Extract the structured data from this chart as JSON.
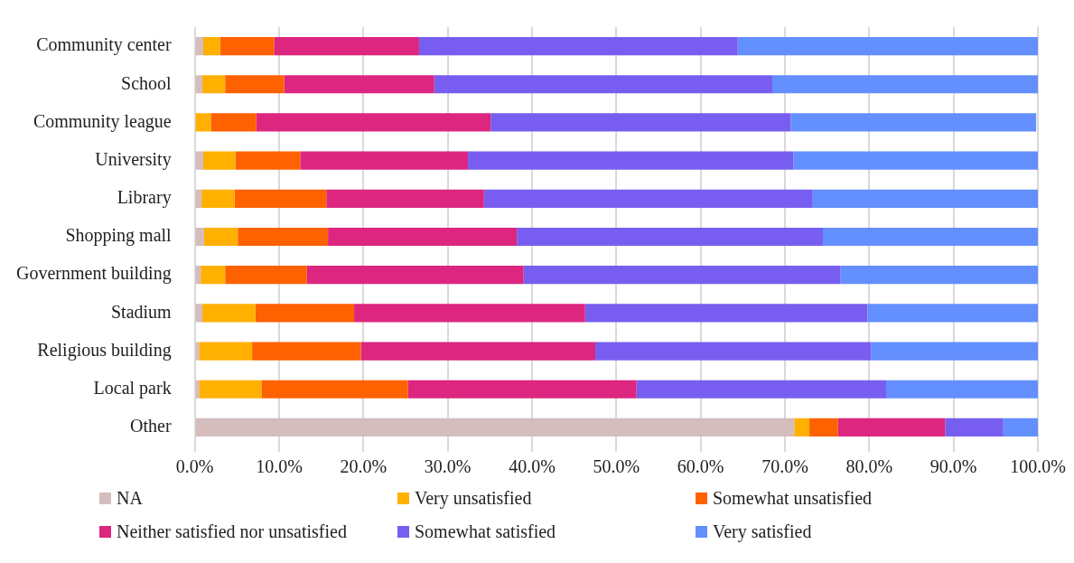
{
  "chart_data": {
    "type": "bar",
    "orientation": "horizontal",
    "stacked": true,
    "categories": [
      "Community center",
      "School",
      "Community league",
      "University",
      "Library",
      "Shopping mall",
      "Government building",
      "Stadium",
      "Religious building",
      "Local park",
      "Other"
    ],
    "series": [
      {
        "name": "NA",
        "color": "#d5bdbd",
        "values": [
          1.0,
          0.9,
          null,
          1.0,
          0.8,
          1.1,
          0.7,
          0.9,
          0.5,
          0.5,
          71.1
        ]
      },
      {
        "name": "Very unsatisfied",
        "color": "#ffb000",
        "values": [
          2.0,
          2.7,
          1.9,
          3.8,
          3.9,
          4.0,
          2.9,
          6.3,
          6.3,
          7.4,
          1.8
        ]
      },
      {
        "name": "Somewhat unsatisfied",
        "color": "#fe6100",
        "values": [
          6.4,
          7.0,
          5.4,
          7.7,
          10.9,
          10.7,
          9.7,
          11.7,
          12.9,
          17.4,
          3.4
        ]
      },
      {
        "name": "Neither satisfied nor unsatisfied",
        "color": "#dc267f",
        "values": [
          17.2,
          17.8,
          27.8,
          19.9,
          18.7,
          22.4,
          25.7,
          27.4,
          27.8,
          27.1,
          12.7
        ]
      },
      {
        "name": "Somewhat satisfied",
        "color": "#785ef0",
        "values": [
          37.8,
          40.1,
          35.6,
          38.6,
          39.0,
          36.3,
          37.6,
          33.5,
          32.7,
          29.6,
          6.9
        ]
      },
      {
        "name": "Very satisfied",
        "color": "#648fff",
        "values": [
          35.6,
          31.5,
          29.1,
          29.0,
          26.7,
          25.5,
          23.4,
          20.2,
          19.8,
          18.0,
          4.1
        ]
      }
    ],
    "xlim": [
      0,
      100
    ],
    "xticks": [
      {
        "value": 0,
        "label": "0.0%"
      },
      {
        "value": 10,
        "label": "10.0%"
      },
      {
        "value": 20,
        "label": "20.0%"
      },
      {
        "value": 30,
        "label": "30.0%"
      },
      {
        "value": 40,
        "label": "40.0%"
      },
      {
        "value": 50,
        "label": "50.0%"
      },
      {
        "value": 60,
        "label": "60.0%"
      },
      {
        "value": 70,
        "label": "70.0%"
      },
      {
        "value": 80,
        "label": "80.0%"
      },
      {
        "value": 90,
        "label": "90.0%"
      },
      {
        "value": 100,
        "label": "100.0%"
      }
    ],
    "grid": "x",
    "legend": "bottom"
  }
}
